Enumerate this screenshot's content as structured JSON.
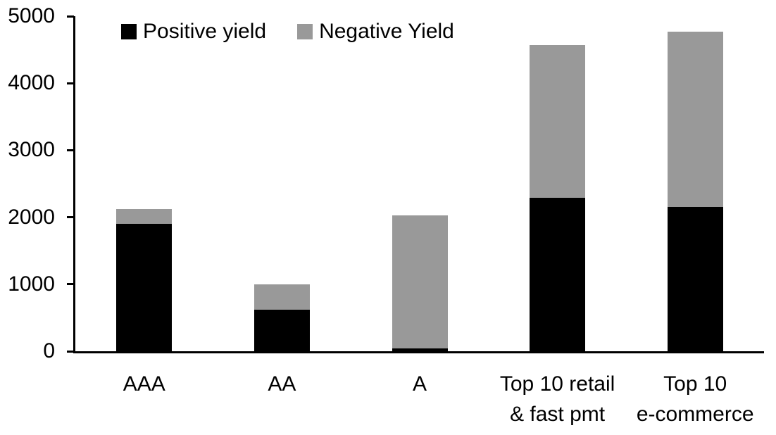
{
  "chart_data": {
    "type": "bar",
    "stacked": true,
    "title": "",
    "xlabel": "",
    "ylabel": "",
    "categories": [
      "AAA",
      "AA",
      "A",
      "Top 10 retail\n& fast pmt",
      "Top 10\ne-commerce"
    ],
    "series": [
      {
        "name": "Positive yield",
        "color": "#000000",
        "values": [
          1900,
          620,
          40,
          2285,
          2150
        ]
      },
      {
        "name": "Negative Yield",
        "color": "#999999",
        "values": [
          225,
          380,
          1985,
          2285,
          2620
        ]
      }
    ],
    "totals": [
      2125,
      1000,
      2025,
      4570,
      4770
    ],
    "ylim": [
      0,
      5000
    ],
    "y_ticks": [
      0,
      1000,
      2000,
      3000,
      4000,
      5000
    ],
    "grid": false,
    "legend_position": "top-left-inside",
    "axis_color": "#000000",
    "background_color": "#ffffff"
  }
}
